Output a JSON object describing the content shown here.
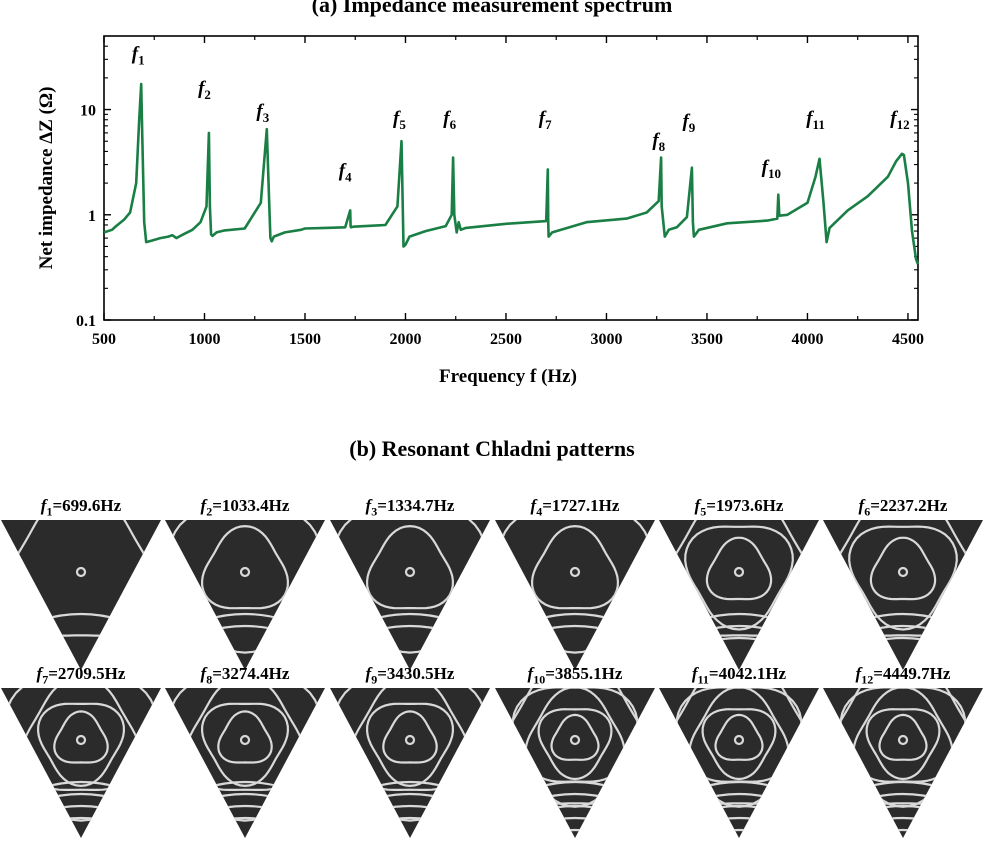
{
  "panel_a": {
    "title": "(a) Impedance measurement spectrum"
  },
  "panel_b": {
    "title": "(b) Resonant Chladni patterns",
    "patterns": [
      {
        "sym": "f",
        "sub": "1",
        "text": "=699.6Hz",
        "rings": 1
      },
      {
        "sym": "f",
        "sub": "2",
        "text": "=1033.4Hz",
        "rings": 2
      },
      {
        "sym": "f",
        "sub": "3",
        "text": "=1334.7Hz",
        "rings": 2
      },
      {
        "sym": "f",
        "sub": "4",
        "text": "=1727.1Hz",
        "rings": 2
      },
      {
        "sym": "f",
        "sub": "5",
        "text": "=1973.6Hz",
        "rings": 3
      },
      {
        "sym": "f",
        "sub": "6",
        "text": "=2237.2Hz",
        "rings": 3
      },
      {
        "sym": "f",
        "sub": "7",
        "text": "=2709.5Hz",
        "rings": 4
      },
      {
        "sym": "f",
        "sub": "8",
        "text": "=3274.4Hz",
        "rings": 4
      },
      {
        "sym": "f",
        "sub": "9",
        "text": "=3430.5Hz",
        "rings": 4
      },
      {
        "sym": "f",
        "sub": "10",
        "text": "=3855.1Hz",
        "rings": 5
      },
      {
        "sym": "f",
        "sub": "11",
        "text": "=4042.1Hz",
        "rings": 5
      },
      {
        "sym": "f",
        "sub": "12",
        "text": "=4449.7Hz",
        "rings": 5
      }
    ]
  },
  "chart_data": {
    "type": "line",
    "xlabel": "Frequency f (Hz)",
    "ylabel": "Net impedance ΔZ (Ω)",
    "xlim": [
      500,
      4550
    ],
    "ylim": [
      0.1,
      50
    ],
    "y_scale": "log",
    "x_ticks": [
      "500",
      "1000",
      "1500",
      "2000",
      "2500",
      "3000",
      "3500",
      "4000",
      "4500"
    ],
    "y_ticks": [
      "0.1",
      "1",
      "10"
    ],
    "line_color": "#1a7f45",
    "series": [
      {
        "x": [
          500,
          540,
          560,
          600,
          630,
          660,
          675,
          685,
          690,
          700,
          710,
          740,
          780,
          820,
          840,
          860,
          880,
          900,
          940,
          980,
          1010,
          1022,
          1027,
          1033,
          1040,
          1060,
          1100,
          1200,
          1280,
          1310,
          1322,
          1328,
          1335,
          1345,
          1400,
          1480,
          1500,
          1600,
          1700,
          1725,
          1727,
          1729,
          1740,
          1800,
          1900,
          1960,
          1980,
          1985,
          1990,
          2000,
          2020,
          2100,
          2200,
          2230,
          2237,
          2243,
          2255,
          2265,
          2275,
          2300,
          2500,
          2700,
          2708,
          2710,
          2712,
          2730,
          2900,
          3100,
          3200,
          3260,
          3272,
          3275,
          3290,
          3310,
          3350,
          3400,
          3425,
          3430,
          3435,
          3460,
          3600,
          3800,
          3850,
          3855,
          3860,
          3900,
          4000,
          4040,
          4060,
          4080,
          4095,
          4110,
          4200,
          4300,
          4400,
          4440,
          4470,
          4480,
          4500,
          4520,
          4540,
          4550
        ],
        "y": [
          0.68,
          0.72,
          0.78,
          0.9,
          1.05,
          2.0,
          8.0,
          17.5,
          6.0,
          0.85,
          0.55,
          0.57,
          0.6,
          0.62,
          0.64,
          0.6,
          0.63,
          0.66,
          0.72,
          0.85,
          1.2,
          6.0,
          1.2,
          0.65,
          0.63,
          0.68,
          0.71,
          0.74,
          1.3,
          6.5,
          1.3,
          0.6,
          0.56,
          0.62,
          0.68,
          0.72,
          0.74,
          0.75,
          0.76,
          1.1,
          0.78,
          0.76,
          0.77,
          0.78,
          0.8,
          1.2,
          5.0,
          1.6,
          0.5,
          0.52,
          0.62,
          0.7,
          0.78,
          1.0,
          3.5,
          1.0,
          0.68,
          0.85,
          0.72,
          0.75,
          0.82,
          0.87,
          2.7,
          0.88,
          0.62,
          0.68,
          0.85,
          0.92,
          1.05,
          1.35,
          3.5,
          1.2,
          0.62,
          0.72,
          0.76,
          0.95,
          2.8,
          0.85,
          0.62,
          0.72,
          0.83,
          0.88,
          0.92,
          1.55,
          0.98,
          1.0,
          1.3,
          2.3,
          3.4,
          1.3,
          0.55,
          0.75,
          1.1,
          1.5,
          2.3,
          3.2,
          3.8,
          3.7,
          2.0,
          0.7,
          0.38,
          0.34
        ]
      }
    ],
    "annotations": [
      {
        "sym": "f",
        "sub": "1",
        "x": 690,
        "y": 30
      },
      {
        "sym": "f",
        "sub": "2",
        "x": 1020,
        "y": 14
      },
      {
        "sym": "f",
        "sub": "3",
        "x": 1310,
        "y": 8.5
      },
      {
        "sym": "f",
        "sub": "4",
        "x": 1720,
        "y": 2.3
      },
      {
        "sym": "f",
        "sub": "5",
        "x": 1990,
        "y": 7.3
      },
      {
        "sym": "f",
        "sub": "6",
        "x": 2240,
        "y": 7.3
      },
      {
        "sym": "f",
        "sub": "7",
        "x": 2715,
        "y": 7.3
      },
      {
        "sym": "f",
        "sub": "8",
        "x": 3280,
        "y": 4.5
      },
      {
        "sym": "f",
        "sub": "9",
        "x": 3430,
        "y": 6.8
      },
      {
        "sym": "f",
        "sub": "10",
        "x": 3840,
        "y": 2.5
      },
      {
        "sym": "f",
        "sub": "11",
        "x": 4060,
        "y": 7.3
      },
      {
        "sym": "f",
        "sub": "12",
        "x": 4480,
        "y": 7.3
      }
    ]
  }
}
